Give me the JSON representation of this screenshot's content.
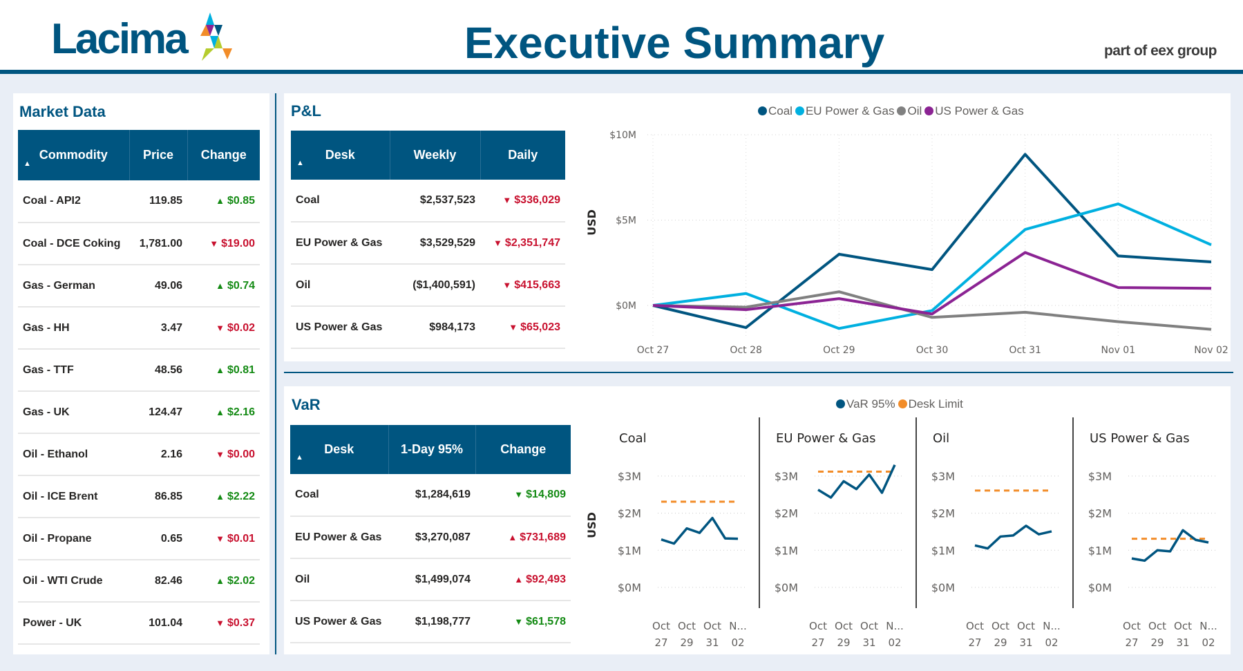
{
  "header": {
    "logo_text": "Lacima",
    "title": "Executive Summary",
    "tagline": "part of eex group"
  },
  "colors": {
    "brand": "#005580",
    "up": "#138a13",
    "down": "#C8102E",
    "coal": "#005580",
    "eu": "#00B0E0",
    "oil": "#808080",
    "us": "#8B2393",
    "limit": "#F28C28"
  },
  "market": {
    "title": "Market Data",
    "columns": [
      "Commodity",
      "Price",
      "Change"
    ],
    "sort_icon": "sort-ascending-icon",
    "rows": [
      {
        "commodity": "Coal - API2",
        "price": "119.85",
        "dir": "up",
        "change": "$0.85"
      },
      {
        "commodity": "Coal - DCE Coking",
        "price": "1,781.00",
        "dir": "down",
        "change": "$19.00"
      },
      {
        "commodity": "Gas - German",
        "price": "49.06",
        "dir": "up",
        "change": "$0.74"
      },
      {
        "commodity": "Gas - HH",
        "price": "3.47",
        "dir": "down",
        "change": "$0.02"
      },
      {
        "commodity": "Gas - TTF",
        "price": "48.56",
        "dir": "up",
        "change": "$0.81"
      },
      {
        "commodity": "Gas - UK",
        "price": "124.47",
        "dir": "up",
        "change": "$2.16"
      },
      {
        "commodity": "Oil - Ethanol",
        "price": "2.16",
        "dir": "down",
        "change": "$0.00"
      },
      {
        "commodity": "Oil - ICE Brent",
        "price": "86.85",
        "dir": "up",
        "change": "$2.22"
      },
      {
        "commodity": "Oil - Propane",
        "price": "0.65",
        "dir": "down",
        "change": "$0.01"
      },
      {
        "commodity": "Oil - WTI Crude",
        "price": "82.46",
        "dir": "up",
        "change": "$2.02"
      },
      {
        "commodity": "Power - UK",
        "price": "101.04",
        "dir": "down",
        "change": "$0.37"
      }
    ]
  },
  "pnl": {
    "title": "P&L",
    "columns": [
      "Desk",
      "Weekly",
      "Daily"
    ],
    "rows": [
      {
        "desk": "Coal",
        "weekly": "$2,537,523",
        "dir": "down",
        "color": "down",
        "daily": "$336,029"
      },
      {
        "desk": "EU Power & Gas",
        "weekly": "$3,529,529",
        "dir": "down",
        "color": "down",
        "daily": "$2,351,747"
      },
      {
        "desk": "Oil",
        "weekly": "($1,400,591)",
        "dir": "down",
        "color": "down",
        "daily": "$415,663"
      },
      {
        "desk": "US Power & Gas",
        "weekly": "$984,173",
        "dir": "down",
        "color": "down",
        "daily": "$65,023"
      }
    ]
  },
  "var": {
    "title": "VaR",
    "columns": [
      "Desk",
      "1-Day 95%",
      "Change"
    ],
    "rows": [
      {
        "desk": "Coal",
        "value": "$1,284,619",
        "dir": "down",
        "color": "up",
        "change": "$14,809"
      },
      {
        "desk": "EU Power & Gas",
        "value": "$3,270,087",
        "dir": "up",
        "color": "down",
        "change": "$731,689"
      },
      {
        "desk": "Oil",
        "value": "$1,499,074",
        "dir": "up",
        "color": "down",
        "change": "$92,493"
      },
      {
        "desk": "US Power & Gas",
        "value": "$1,198,777",
        "dir": "down",
        "color": "up",
        "change": "$61,578"
      }
    ]
  },
  "chart_data": [
    {
      "type": "line",
      "ylabel": "USD",
      "x": [
        "Oct 27",
        "Oct 28",
        "Oct 29",
        "Oct 30",
        "Oct 31",
        "Nov 01",
        "Nov 02"
      ],
      "yticks": [
        "$0M",
        "$5M",
        "$10M"
      ],
      "ylim": [
        -2,
        10
      ],
      "grid": true,
      "legend": "top",
      "series": [
        {
          "name": "Coal",
          "color": "#005580",
          "values": [
            0,
            -1.3,
            3.0,
            2.1,
            8.85,
            2.9,
            2.55
          ]
        },
        {
          "name": "EU Power & Gas",
          "color": "#00B0E0",
          "values": [
            0,
            0.7,
            -1.35,
            -0.3,
            4.45,
            5.95,
            3.55
          ]
        },
        {
          "name": "Oil",
          "color": "#808080",
          "values": [
            0,
            -0.1,
            0.8,
            -0.7,
            -0.4,
            -0.95,
            -1.4
          ]
        },
        {
          "name": "US Power & Gas",
          "color": "#8B2393",
          "values": [
            0,
            -0.25,
            0.4,
            -0.5,
            3.1,
            1.05,
            1.0
          ]
        }
      ]
    },
    {
      "type": "line",
      "ylabel": "USD",
      "legend": "top",
      "legend_items": [
        {
          "name": "VaR 95%",
          "color": "#005580"
        },
        {
          "name": "Desk Limit",
          "color": "#F28C28"
        }
      ],
      "x": [
        "Oct 27",
        "Oct 28",
        "Oct 29",
        "Oct 30",
        "Oct 31",
        "Nov 01",
        "Nov 02"
      ],
      "xtick_labels": [
        [
          "Oct",
          "27"
        ],
        [
          "Oct",
          "29"
        ],
        [
          "Oct",
          "31"
        ],
        [
          "N...",
          "02"
        ]
      ],
      "yticks": [
        "$0M",
        "$1M",
        "$2M",
        "$3M"
      ],
      "ylim": [
        0,
        3
      ],
      "panels": [
        {
          "title": "Coal",
          "var": [
            1.29,
            1.18,
            1.59,
            1.47,
            1.87,
            1.32,
            1.31
          ],
          "limit": 2.31
        },
        {
          "title": "EU Power & Gas",
          "var": [
            2.63,
            2.42,
            2.86,
            2.65,
            3.04,
            2.55,
            3.3
          ],
          "limit": 3.12
        },
        {
          "title": "Oil",
          "var": [
            1.13,
            1.05,
            1.37,
            1.4,
            1.66,
            1.43,
            1.51
          ],
          "limit": 2.61
        },
        {
          "title": "US Power & Gas",
          "var": [
            0.78,
            0.72,
            1.0,
            0.97,
            1.54,
            1.28,
            1.21
          ],
          "limit": 1.31
        }
      ]
    }
  ]
}
